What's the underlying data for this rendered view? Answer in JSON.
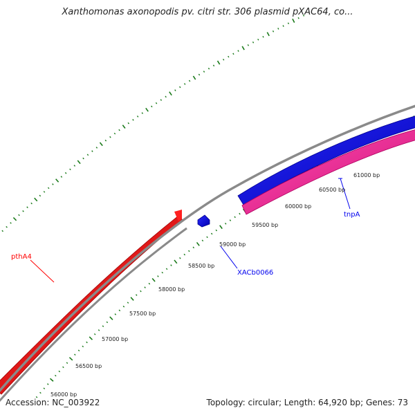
{
  "title": "Xanthomonas axonopodis pv. citri str. 306 plasmid pXAC64, co...",
  "footer": {
    "accession": "Accession: NC_003922",
    "summary": "Topology: circular; Length: 64,920 bp; Genes: 73"
  },
  "bp_labels": [
    "56000 bp",
    "56500 bp",
    "57000 bp",
    "57500 bp",
    "58000 bp",
    "58500 bp",
    "59000 bp",
    "59500 bp",
    "60000 bp",
    "60500 bp",
    "61000 bp"
  ],
  "genes": [
    {
      "name": "pthA4",
      "color": "#ff0000"
    },
    {
      "name": "XACb0066",
      "color": "#0000ee"
    },
    {
      "name": "tnpA",
      "color": "#0000ee"
    }
  ],
  "colors": {
    "backbone": "#8a8a8a",
    "forward_strand": "#ff0000",
    "reverse_strand": "#0000ff",
    "other_strand": "#ff1493",
    "ticks": "#1a7a1a"
  }
}
